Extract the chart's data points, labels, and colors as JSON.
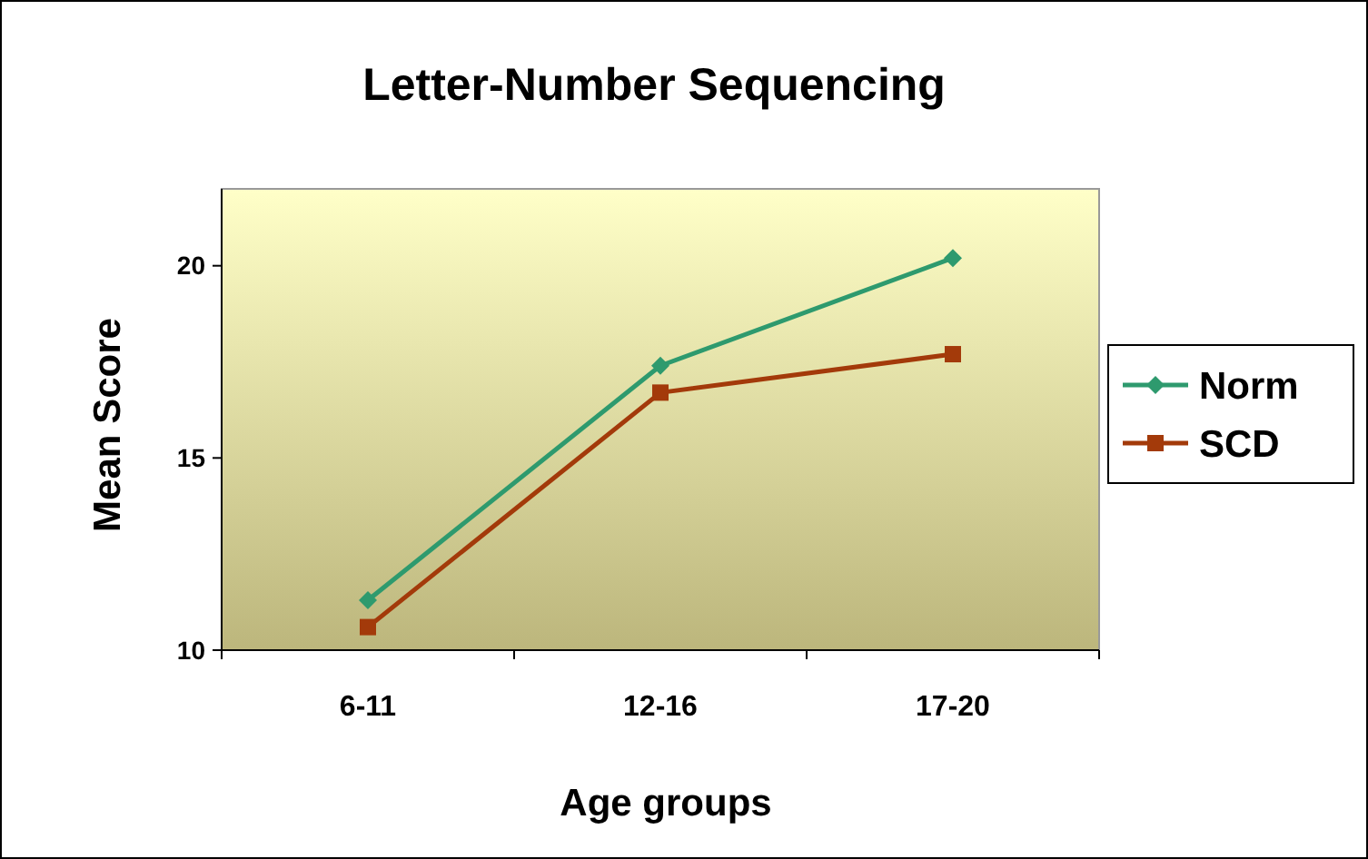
{
  "chart_data": {
    "type": "line",
    "title": "Letter-Number Sequencing",
    "xlabel": "Age groups",
    "ylabel": "Mean Score",
    "categories": [
      "6-11",
      "12-16",
      "17-20"
    ],
    "series": [
      {
        "name": "Norm",
        "color": "#2e9a6e",
        "values": [
          11.3,
          17.4,
          20.2
        ],
        "marker": "diamond"
      },
      {
        "name": "SCD",
        "color": "#a33a0a",
        "values": [
          10.6,
          16.7,
          17.7
        ],
        "marker": "square"
      }
    ],
    "ylim": [
      10,
      22
    ],
    "yticks": [
      10,
      15,
      20
    ],
    "legend": "right"
  }
}
